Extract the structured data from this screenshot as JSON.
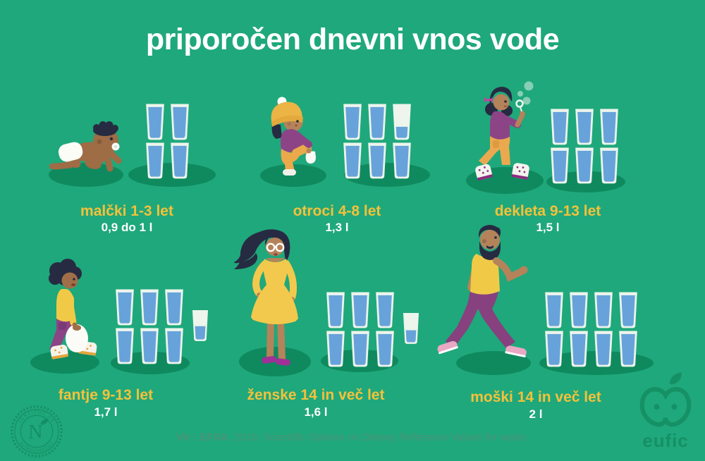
{
  "title": "priporočen dnevni vnos vode",
  "groups": [
    {
      "label": "malčki 1-3 let",
      "value": "0,9 do 1 l",
      "person": "baby-crawling",
      "glasses": {
        "rows": [
          [
            1,
            1
          ],
          [
            1,
            1
          ]
        ]
      }
    },
    {
      "label": "otroci 4-8 let",
      "value": "1,3 l",
      "person": "toddler-putting-on-sock",
      "glasses": {
        "rows": [
          [
            1,
            1,
            0.3
          ],
          [
            1,
            1,
            1
          ]
        ]
      }
    },
    {
      "label": "dekleta 9-13 let",
      "value": "1,5 l",
      "person": "girl-blowing-bubbles",
      "glasses": {
        "rows": [
          [
            1,
            1,
            1
          ],
          [
            1,
            1,
            1
          ]
        ]
      }
    },
    {
      "label": "fantje 9-13 let",
      "value": "1,7 l",
      "person": "boy-carrying-bag",
      "glasses": {
        "rows": [
          [
            1,
            1,
            1
          ],
          [
            1,
            1,
            1
          ]
        ],
        "extra": 0.45
      }
    },
    {
      "label": "ženske 14 in več let",
      "value": "1,6 l",
      "person": "woman-in-yellow-dress",
      "glasses": {
        "rows": [
          [
            1,
            1,
            1
          ],
          [
            1,
            1,
            1
          ]
        ],
        "extra": 0.4
      }
    },
    {
      "label": "moški 14 in več let",
      "value": "2 l",
      "person": "man-walking",
      "glasses": {
        "rows": [
          [
            1,
            1,
            1,
            1
          ],
          [
            1,
            1,
            1,
            1
          ]
        ]
      }
    }
  ],
  "source": {
    "bold": "Vir : EFSA",
    "rest": ". 2010. Scientific Opinion on Dietary Reference Values for water."
  },
  "eufic": {
    "wordmark": "eufic"
  },
  "seal": {
    "arc_top": "INŠTITUT ZA",
    "arc_bottom": "NUTRICIONISTIKO",
    "monogram": "N"
  },
  "colors": {
    "background": "#1FA87B",
    "ground_shadow": "#0F8A5F",
    "glass": "#EDF5EC",
    "water": "#67A3DA",
    "label_yellow": "#F4C13B",
    "value_white": "#FFFFFF",
    "source_text": "#4D9379",
    "watermark_green": "#11855D"
  },
  "chart_data": {
    "type": "bar",
    "title": "priporočen dnevni vnos vode",
    "categories": [
      "malčki 1-3 let",
      "otroci 4-8 let",
      "dekleta 9-13 let",
      "fantje 9-13 let",
      "ženske 14 in več let",
      "moški 14 in več let"
    ],
    "values": [
      1.0,
      1.3,
      1.5,
      1.7,
      1.6,
      2.0
    ],
    "value_labels": [
      "0,9 do 1 l",
      "1,3 l",
      "1,5 l",
      "1,7 l",
      "1,6 l",
      "2 l"
    ],
    "unit": "litres per day",
    "pictogram": "water glasses",
    "glasses_full": [
      4,
      5,
      6,
      6,
      6,
      8
    ],
    "glasses_partial": [
      0,
      1,
      0,
      1,
      1,
      0
    ],
    "legend_position": "none",
    "grid": false
  }
}
